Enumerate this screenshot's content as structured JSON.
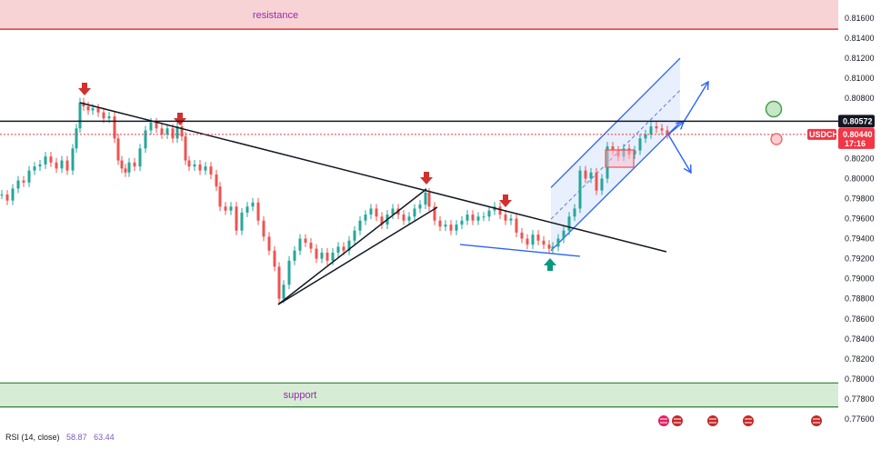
{
  "chart_data": {
    "type": "candlestick",
    "symbol": "USDCHF",
    "resistance_label": "resistance",
    "support_label": "support",
    "ylim": [
      0.7752,
      0.8187
    ],
    "y_ticks": [
      "0.81600",
      "0.81400",
      "0.81200",
      "0.81000",
      "0.80800",
      "0.80600",
      "0.80400",
      "0.80200",
      "0.80000",
      "0.79800",
      "0.79600",
      "0.79400",
      "0.79200",
      "0.79000",
      "0.78800",
      "0.78600",
      "0.78400",
      "0.78200",
      "0.78000",
      "0.77800",
      "0.77600"
    ],
    "horizontal_line_price": "0.80572",
    "price_tag": {
      "symbol": "USDCHF",
      "price": "0.80440",
      "countdown": "17:16"
    },
    "resistance_zone": [
      0.8149,
      0.8187
    ],
    "support_zone": [
      0.7772,
      0.7796
    ],
    "series_points": [
      [
        0,
        0.7984
      ],
      [
        6,
        0.7978
      ],
      [
        12,
        0.799
      ],
      [
        18,
        0.7998
      ],
      [
        24,
        0.7996
      ],
      [
        30,
        0.8008
      ],
      [
        36,
        0.8012
      ],
      [
        42,
        0.8014
      ],
      [
        48,
        0.8022
      ],
      [
        54,
        0.8016
      ],
      [
        60,
        0.801
      ],
      [
        66,
        0.8018
      ],
      [
        72,
        0.8008
      ],
      [
        78,
        0.803
      ],
      [
        82,
        0.805
      ],
      [
        86,
        0.8076
      ],
      [
        90,
        0.8072
      ],
      [
        95,
        0.8068
      ],
      [
        100,
        0.807
      ],
      [
        106,
        0.8066
      ],
      [
        112,
        0.806
      ],
      [
        118,
        0.8062
      ],
      [
        124,
        0.804
      ],
      [
        128,
        0.8018
      ],
      [
        132,
        0.801
      ],
      [
        136,
        0.8006
      ],
      [
        140,
        0.8016
      ],
      [
        146,
        0.8012
      ],
      [
        152,
        0.803
      ],
      [
        158,
        0.8048
      ],
      [
        164,
        0.8056
      ],
      [
        170,
        0.805
      ],
      [
        176,
        0.8044
      ],
      [
        182,
        0.805
      ],
      [
        188,
        0.804
      ],
      [
        193,
        0.8052
      ],
      [
        198,
        0.8042
      ],
      [
        202,
        0.8018
      ],
      [
        206,
        0.8012
      ],
      [
        212,
        0.8014
      ],
      [
        218,
        0.8008
      ],
      [
        224,
        0.8012
      ],
      [
        230,
        0.8004
      ],
      [
        236,
        0.7992
      ],
      [
        240,
        0.7972
      ],
      [
        246,
        0.7968
      ],
      [
        252,
        0.7972
      ],
      [
        258,
        0.7948
      ],
      [
        264,
        0.7966
      ],
      [
        270,
        0.7972
      ],
      [
        276,
        0.7976
      ],
      [
        282,
        0.7958
      ],
      [
        288,
        0.7942
      ],
      [
        294,
        0.7928
      ],
      [
        300,
        0.7912
      ],
      [
        305,
        0.788
      ],
      [
        310,
        0.7894
      ],
      [
        316,
        0.7918
      ],
      [
        322,
        0.7928
      ],
      [
        328,
        0.794
      ],
      [
        334,
        0.7936
      ],
      [
        340,
        0.793
      ],
      [
        346,
        0.792
      ],
      [
        352,
        0.7926
      ],
      [
        358,
        0.7918
      ],
      [
        364,
        0.7926
      ],
      [
        370,
        0.7932
      ],
      [
        376,
        0.7928
      ],
      [
        382,
        0.7938
      ],
      [
        388,
        0.7948
      ],
      [
        394,
        0.7958
      ],
      [
        400,
        0.7964
      ],
      [
        406,
        0.797
      ],
      [
        412,
        0.7962
      ],
      [
        418,
        0.7954
      ],
      [
        424,
        0.7964
      ],
      [
        430,
        0.797
      ],
      [
        436,
        0.7964
      ],
      [
        442,
        0.7958
      ],
      [
        448,
        0.7962
      ],
      [
        454,
        0.797
      ],
      [
        460,
        0.7974
      ],
      [
        466,
        0.7986
      ],
      [
        470,
        0.7972
      ],
      [
        476,
        0.7958
      ],
      [
        482,
        0.7952
      ],
      [
        488,
        0.7954
      ],
      [
        494,
        0.7948
      ],
      [
        500,
        0.7954
      ],
      [
        506,
        0.7958
      ],
      [
        512,
        0.7964
      ],
      [
        518,
        0.7958
      ],
      [
        524,
        0.7962
      ],
      [
        530,
        0.7962
      ],
      [
        536,
        0.7968
      ],
      [
        542,
        0.7972
      ],
      [
        548,
        0.7964
      ],
      [
        554,
        0.7958
      ],
      [
        560,
        0.796
      ],
      [
        566,
        0.7946
      ],
      [
        572,
        0.794
      ],
      [
        578,
        0.7934
      ],
      [
        584,
        0.7944
      ],
      [
        590,
        0.7938
      ],
      [
        596,
        0.7934
      ],
      [
        602,
        0.793
      ],
      [
        606,
        0.7932
      ],
      [
        612,
        0.794
      ],
      [
        618,
        0.7948
      ],
      [
        624,
        0.7962
      ],
      [
        630,
        0.797
      ],
      [
        636,
        0.8008
      ],
      [
        642,
        0.8
      ],
      [
        648,
        0.8006
      ],
      [
        654,
        0.7988
      ],
      [
        660,
        0.8
      ],
      [
        666,
        0.8032
      ],
      [
        672,
        0.8028
      ],
      [
        678,
        0.8022
      ],
      [
        684,
        0.803
      ],
      [
        690,
        0.8024
      ],
      [
        696,
        0.8028
      ],
      [
        702,
        0.804
      ],
      [
        708,
        0.8044
      ],
      [
        714,
        0.8052
      ],
      [
        720,
        0.805
      ],
      [
        726,
        0.8048
      ],
      [
        732,
        0.8044
      ]
    ]
  },
  "indicator": {
    "name": "RSI (14, close)",
    "value1": "58.87",
    "value2": "63.44"
  },
  "colors": {
    "up": "#26a69a",
    "down": "#ef5350",
    "resistance_fill": "#f8d3d6",
    "resistance_line": "#e53935",
    "support_fill": "#d6ecd4",
    "support_line": "#2e7d32",
    "channel_fill": "#d8e5fb",
    "channel_line": "#2962ff",
    "arrow_red": "#d32f2f",
    "arrow_green": "#089981",
    "tag_red": "#f23645",
    "zone_label": "#9c27b0"
  }
}
